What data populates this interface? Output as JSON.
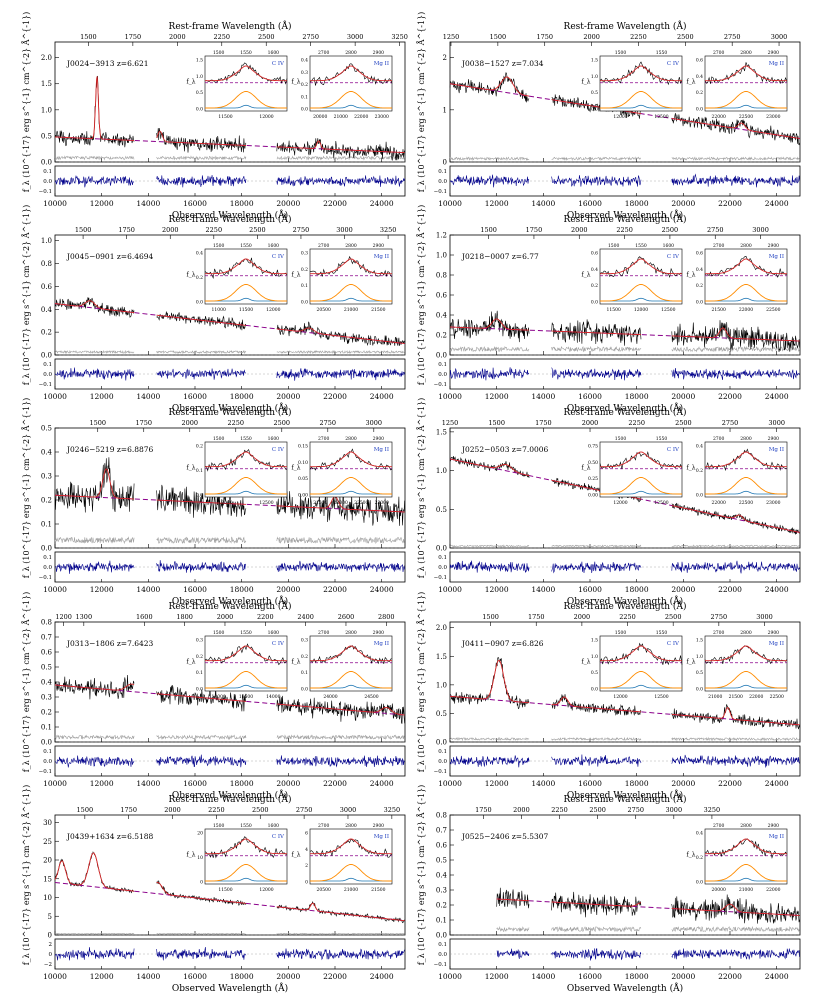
{
  "common": {
    "top_axis_label": "Rest-frame Wavelength (Å)",
    "bottom_axis_label": "Observed Wavelength (Å)",
    "y_axis_label": "f_λ (10^{-17} erg s^{-1} cm^{-2} Å^{-1})",
    "inset_y_label": "f_λ",
    "civ_label": "C IV",
    "mgii_label": "Mg II",
    "obs_ticks": [
      "10000",
      "12000",
      "14000",
      "16000",
      "18000",
      "20000",
      "22000",
      "24000"
    ],
    "colors": {
      "spectrum": "#000000",
      "model": "#d62728",
      "continuum": "#8b008b",
      "error": "#a0a0a0",
      "residual": "#00008b",
      "component_broad": "#ff8c00",
      "component_narrow": "#1f77b4"
    }
  },
  "chart_data": [
    {
      "type": "line",
      "object": "J0024−3913",
      "redshift": "6.621",
      "z": 6.621,
      "xlim": [
        10000,
        25000
      ],
      "ylim": [
        0,
        2.3
      ],
      "y_ticks": [
        "0.0",
        "0.5",
        "1.0",
        "1.5",
        "2.0"
      ],
      "top_ticks": [
        "1500",
        "1750",
        "2000",
        "2250",
        "2500",
        "2750",
        "3000",
        "3250"
      ],
      "resid_ticks": [
        "0.1",
        "0.0",
        "−0.1"
      ],
      "continuum": [
        [
          10000,
          0.48
        ],
        [
          25000,
          0.18
        ]
      ],
      "lines": [
        {
          "x": 11800,
          "h": 1.2,
          "w": 60
        },
        {
          "x": 14500,
          "h": 0.2,
          "w": 100
        },
        {
          "x": 21300,
          "h": 0.15,
          "w": 80
        }
      ],
      "noise": 0.12,
      "civ_inset": {
        "top_ticks": [
          "1500",
          "1550",
          "1600"
        ],
        "bottom_ticks": [
          "11500",
          "12000"
        ],
        "y_ticks": [
          "0.0",
          "0.5",
          "1.0",
          "1.5"
        ]
      },
      "mgii_inset": {
        "top_ticks": [
          "2700",
          "2800",
          "2900"
        ],
        "bottom_ticks": [
          "20000",
          "21000",
          "22000",
          "23000"
        ],
        "y_ticks": [
          "0.0",
          "0.1",
          "0.2",
          "0.3",
          "0.4"
        ]
      }
    },
    {
      "type": "line",
      "object": "J0038−1527",
      "redshift": "7.034",
      "z": 7.034,
      "xlim": [
        10000,
        25000
      ],
      "ylim": [
        0,
        2.3
      ],
      "y_ticks": [
        "0",
        "1",
        "2"
      ],
      "top_ticks": [
        "1250",
        "1500",
        "1750",
        "2000",
        "2250",
        "2500",
        "2750",
        "3000"
      ],
      "resid_ticks": [
        "0.1",
        "0.0",
        "−0.1"
      ],
      "continuum": [
        [
          10000,
          1.5
        ],
        [
          25000,
          0.45
        ]
      ],
      "lines": [
        {
          "x": 12450,
          "h": 0.3,
          "w": 250
        },
        {
          "x": 22500,
          "h": 0.12,
          "w": 150
        }
      ],
      "noise": 0.1,
      "civ_inset": {
        "top_ticks": [
          "1500",
          "1550"
        ],
        "bottom_ticks": [
          "12000",
          "12500"
        ],
        "y_ticks": [
          "0.0",
          "0.5",
          "1.0",
          "1.5"
        ]
      },
      "mgii_inset": {
        "top_ticks": [
          "2700",
          "2800",
          "2900"
        ],
        "bottom_ticks": [
          "22000",
          "22500",
          "23000"
        ],
        "y_ticks": [
          "0.0",
          "0.2",
          "0.4",
          "0.6"
        ]
      }
    },
    {
      "type": "line",
      "object": "J0045−0901",
      "redshift": "6.4694",
      "z": 6.4694,
      "xlim": [
        10000,
        25000
      ],
      "ylim": [
        0,
        1.05
      ],
      "y_ticks": [
        "0.0",
        "0.2",
        "0.4",
        "0.6",
        "0.8",
        "1.0"
      ],
      "top_ticks": [
        "1500",
        "1750",
        "2000",
        "2250",
        "2500",
        "2750",
        "3000",
        "3250"
      ],
      "resid_ticks": [
        "0.1",
        "0.0",
        "−0.1"
      ],
      "continuum": [
        [
          10000,
          0.45
        ],
        [
          25000,
          0.1
        ]
      ],
      "lines": [
        {
          "x": 11500,
          "h": 0.06,
          "w": 200
        },
        {
          "x": 20900,
          "h": 0.04,
          "w": 200
        }
      ],
      "noise": 0.04,
      "civ_inset": {
        "top_ticks": [
          "1500",
          "1550",
          "1600"
        ],
        "bottom_ticks": [
          "11000",
          "11500",
          "12000"
        ],
        "y_ticks": [
          "0.0",
          "0.2",
          "0.4"
        ]
      },
      "mgii_inset": {
        "top_ticks": [
          "2700",
          "2800",
          "2900"
        ],
        "bottom_ticks": [
          "20500",
          "21000",
          "21500"
        ],
        "y_ticks": [
          "0.0",
          "0.1",
          "0.2",
          "0.3"
        ]
      }
    },
    {
      "type": "line",
      "object": "J0218−0007",
      "redshift": "6.77",
      "z": 6.77,
      "xlim": [
        10000,
        25000
      ],
      "ylim": [
        0,
        1.2
      ],
      "y_ticks": [
        "0.0",
        "0.2",
        "0.4",
        "0.6",
        "0.8",
        "1.0",
        "1.2"
      ],
      "top_ticks": [
        "1500",
        "1750",
        "2000",
        "2250",
        "2500",
        "2750",
        "3000"
      ],
      "resid_ticks": [
        "0.1",
        "0.0",
        "−0.1"
      ],
      "continuum": [
        [
          10000,
          0.28
        ],
        [
          25000,
          0.14
        ]
      ],
      "lines": [
        {
          "x": 12000,
          "h": 0.1,
          "w": 200
        },
        {
          "x": 21700,
          "h": 0.1,
          "w": 150
        }
      ],
      "noise": 0.09,
      "civ_inset": {
        "top_ticks": [
          "1500",
          "1550",
          "1600"
        ],
        "bottom_ticks": [
          "11500",
          "12000",
          "12500"
        ],
        "y_ticks": [
          "0.0",
          "0.2",
          "0.4",
          "0.6"
        ]
      },
      "mgii_inset": {
        "top_ticks": [
          "2700",
          "2800",
          "2900"
        ],
        "bottom_ticks": [
          "21500",
          "22000",
          "22500"
        ],
        "y_ticks": [
          "0.0",
          "0.2",
          "0.4",
          "0.6"
        ]
      }
    },
    {
      "type": "line",
      "object": "J0246−5219",
      "redshift": "6.8876",
      "z": 6.8876,
      "xlim": [
        10000,
        25000
      ],
      "ylim": [
        0,
        0.5
      ],
      "y_ticks": [
        "0.0",
        "0.1",
        "0.2",
        "0.3",
        "0.4",
        "0.5"
      ],
      "top_ticks": [
        "1250",
        "1500",
        "1750",
        "2000",
        "2250",
        "2500",
        "2750",
        "3000"
      ],
      "resid_ticks": [
        "0.1",
        "0.0",
        "−0.1"
      ],
      "continuum": [
        [
          10000,
          0.22
        ],
        [
          25000,
          0.15
        ]
      ],
      "lines": [
        {
          "x": 12200,
          "h": 0.12,
          "w": 150
        },
        {
          "x": 22000,
          "h": 0.05,
          "w": 150
        }
      ],
      "noise": 0.05,
      "civ_inset": {
        "top_ticks": [
          "1500",
          "1550",
          "1600"
        ],
        "bottom_ticks": [
          "12000",
          "12500"
        ],
        "y_ticks": [
          "0.0",
          "0.1",
          "0.2"
        ]
      },
      "mgii_inset": {
        "top_ticks": [
          "2700",
          "2800",
          "2900"
        ],
        "bottom_ticks": [
          "21500",
          "22000",
          "22500",
          "23000"
        ],
        "y_ticks": [
          "0.00",
          "0.05",
          "0.10",
          "0.15"
        ]
      }
    },
    {
      "type": "line",
      "object": "J0252−0503",
      "redshift": "7.0006",
      "z": 7.0006,
      "xlim": [
        10000,
        25000
      ],
      "ylim": [
        0,
        1.55
      ],
      "y_ticks": [
        "0.0",
        "0.5",
        "1.0",
        "1.5"
      ],
      "top_ticks": [
        "1250",
        "1500",
        "1750",
        "2000",
        "2250",
        "2500",
        "2750",
        "3000"
      ],
      "resid_ticks": [
        "0.1",
        "0.0",
        "−0.1"
      ],
      "continuum": [
        [
          10000,
          1.15
        ],
        [
          25000,
          0.2
        ]
      ],
      "lines": [
        {
          "x": 12400,
          "h": 0.08,
          "w": 250
        },
        {
          "x": 22400,
          "h": 0.06,
          "w": 150
        }
      ],
      "noise": 0.04,
      "civ_inset": {
        "top_ticks": [
          "1500",
          "1550"
        ],
        "bottom_ticks": [
          "12000",
          "12500"
        ],
        "y_ticks": [
          "0.00",
          "0.25",
          "0.50",
          "0.75"
        ]
      },
      "mgii_inset": {
        "top_ticks": [
          "2700",
          "2800",
          "2900"
        ],
        "bottom_ticks": [
          "22000",
          "22500",
          "23000"
        ],
        "y_ticks": [
          "0.0",
          "0.2",
          "0.4"
        ]
      }
    },
    {
      "type": "line",
      "object": "J0313−1806",
      "redshift": "7.6423",
      "z": 7.6423,
      "xlim": [
        10000,
        25000
      ],
      "ylim": [
        0,
        0.8
      ],
      "y_ticks": [
        "0.0",
        "0.1",
        "0.2",
        "0.3",
        "0.4",
        "0.5",
        "0.6",
        "0.7",
        "0.8"
      ],
      "top_ticks": [
        "1200",
        "1300",
        "1600",
        "1800",
        "2000",
        "2200",
        "2400",
        "2600",
        "2800"
      ],
      "resid_ticks": [
        "0.1",
        "0.0",
        "−0.1"
      ],
      "continuum": [
        [
          10000,
          0.38
        ],
        [
          25000,
          0.18
        ]
      ],
      "lines": [
        {
          "x": 13300,
          "h": 0.05,
          "w": 250
        },
        {
          "x": 24200,
          "h": 0.04,
          "w": 200
        }
      ],
      "noise": 0.05,
      "civ_inset": {
        "top_ticks": [
          "1500",
          "1550",
          "1600"
        ],
        "bottom_ticks": [
          "13000",
          "13500",
          "14000"
        ],
        "y_ticks": [
          "0.0",
          "0.1",
          "0.2",
          "0.3"
        ]
      },
      "mgii_inset": {
        "top_ticks": [
          "2700",
          "2800",
          "2900"
        ],
        "bottom_ticks": [
          "24000",
          "24500"
        ],
        "y_ticks": [
          "0.0",
          "0.1",
          "0.2",
          "0.3"
        ]
      }
    },
    {
      "type": "line",
      "object": "J0411−0907",
      "redshift": "6.826",
      "z": 6.826,
      "xlim": [
        10000,
        25000
      ],
      "ylim": [
        0,
        2.1
      ],
      "y_ticks": [
        "0.0",
        "0.5",
        "1.0",
        "1.5",
        "2.0"
      ],
      "top_ticks": [
        "1500",
        "1750",
        "2000",
        "2250",
        "2500",
        "2750",
        "3000"
      ],
      "resid_ticks": [
        "0.1",
        "0.0",
        "−0.1"
      ],
      "continuum": [
        [
          10000,
          0.8
        ],
        [
          25000,
          0.3
        ]
      ],
      "lines": [
        {
          "x": 12100,
          "h": 0.7,
          "w": 200
        },
        {
          "x": 14900,
          "h": 0.15,
          "w": 150
        },
        {
          "x": 21900,
          "h": 0.2,
          "w": 100
        }
      ],
      "noise": 0.08,
      "civ_inset": {
        "top_ticks": [
          "1500",
          "1550"
        ],
        "bottom_ticks": [
          "12000",
          "12500"
        ],
        "y_ticks": [
          "0.0",
          "0.5",
          "1.0",
          "1.5"
        ]
      },
      "mgii_inset": {
        "top_ticks": [
          "2700",
          "2800",
          "2900"
        ],
        "bottom_ticks": [
          "21000",
          "21500",
          "22000",
          "22500"
        ],
        "y_ticks": [
          "0.0",
          "0.5",
          "1.0",
          "1.5"
        ]
      }
    },
    {
      "type": "line",
      "object": "J0439+1634",
      "redshift": "6.5188",
      "z": 6.5188,
      "xlim": [
        10000,
        25000
      ],
      "ylim": [
        0,
        32
      ],
      "y_ticks": [
        "0",
        "5",
        "10",
        "15",
        "20",
        "25",
        "30"
      ],
      "top_ticks": [
        "1500",
        "1750",
        "2000",
        "2250",
        "2500",
        "2750",
        "3000",
        "3250"
      ],
      "resid_ticks": [
        "2",
        "0",
        "−2"
      ],
      "continuum": [
        [
          10000,
          14
        ],
        [
          25000,
          3.8
        ]
      ],
      "lines": [
        {
          "x": 10300,
          "h": 6,
          "w": 150
        },
        {
          "x": 11650,
          "h": 9,
          "w": 200
        },
        {
          "x": 14400,
          "h": 3,
          "w": 200
        },
        {
          "x": 21050,
          "h": 2,
          "w": 100
        }
      ],
      "noise": 0.5,
      "civ_inset": {
        "top_ticks": [
          "1500",
          "1550",
          "1600"
        ],
        "bottom_ticks": [
          "11500",
          "12000"
        ],
        "y_ticks": [
          "0",
          "10",
          "20"
        ]
      },
      "mgii_inset": {
        "top_ticks": [
          "2700",
          "2800",
          "2900"
        ],
        "bottom_ticks": [
          "20500",
          "21000",
          "21500"
        ],
        "y_ticks": [
          "0",
          "2",
          "4",
          "6"
        ]
      }
    },
    {
      "type": "line",
      "object": "J0525−2406",
      "redshift": "5.5307",
      "z": 5.5307,
      "xlim": [
        10000,
        25000
      ],
      "ylim": [
        0,
        0.8
      ],
      "y_ticks": [
        "0.0",
        "0.1",
        "0.2",
        "0.3",
        "0.4",
        "0.5",
        "0.6",
        "0.7",
        "0.8"
      ],
      "top_ticks": [
        "1500",
        "1750",
        "2000",
        "2250",
        "2500",
        "2750",
        "3000",
        "3250"
      ],
      "resid_ticks": [
        "0.1",
        "0.0",
        "−0.1"
      ],
      "continuum": [
        [
          12000,
          0.24
        ],
        [
          25000,
          0.13
        ]
      ],
      "lines": [
        {
          "x": 18250,
          "h": 0.03,
          "w": 200
        },
        {
          "x": 22000,
          "h": 0.05,
          "w": 200
        }
      ],
      "noise": 0.06,
      "civ_inset": null,
      "mgii_inset": {
        "top_ticks": [
          "2700",
          "2800",
          "2900"
        ],
        "bottom_ticks": [
          "20000",
          "21000",
          "22000"
        ],
        "y_ticks": [
          "0.0",
          "0.2",
          "0.4"
        ]
      }
    }
  ]
}
